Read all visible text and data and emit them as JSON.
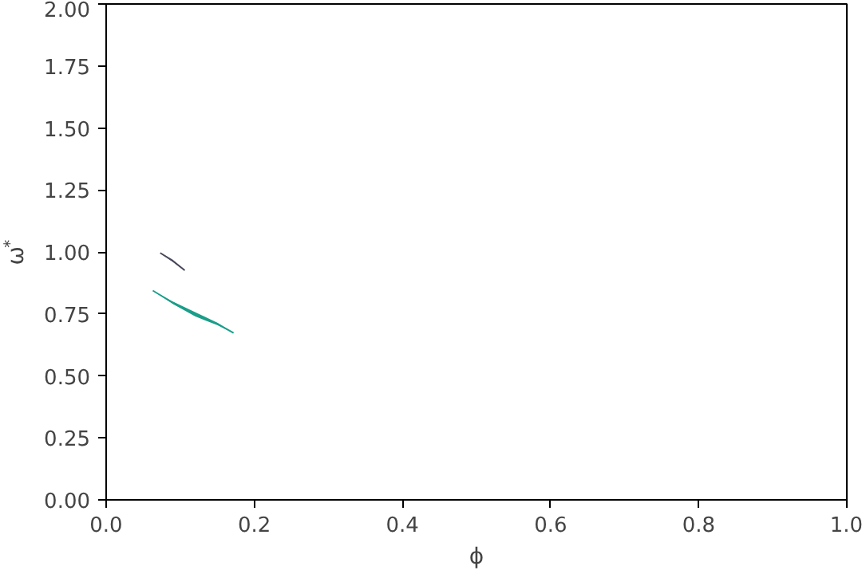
{
  "chart_data": {
    "type": "line",
    "xlabel": "ϕ",
    "ylabel": "ω$^{*}$",
    "xlim": [
      0,
      1
    ],
    "ylim": [
      0,
      2
    ],
    "xticks": [
      {
        "value": 0,
        "label": "0.0"
      },
      {
        "value": 0.2,
        "label": "0.2"
      },
      {
        "value": 0.4,
        "label": "0.4"
      },
      {
        "value": 0.6,
        "label": "0.6"
      },
      {
        "value": 0.8,
        "label": "0.8"
      },
      {
        "value": 1,
        "label": "1.0"
      }
    ],
    "yticks": [
      {
        "value": 0,
        "label": "0.00"
      },
      {
        "value": 0.25,
        "label": "0.25"
      },
      {
        "value": 0.5,
        "label": "0.50"
      },
      {
        "value": 0.75,
        "label": "0.75"
      },
      {
        "value": 1,
        "label": "1.00"
      },
      {
        "value": 1.25,
        "label": "1.25"
      },
      {
        "value": 1.5,
        "label": "1.50"
      },
      {
        "value": 1.75,
        "label": "1.75"
      },
      {
        "value": 2,
        "label": "2.00"
      }
    ],
    "series": [
      {
        "color": "#4a4a5c",
        "x": [
          0.073,
          0.09,
          0.106
        ],
        "values": [
          0.996,
          0.964,
          0.926
        ],
        "lower": [
          0.995,
          0.96,
          0.924
        ],
        "upper": [
          0.997,
          0.968,
          0.928
        ]
      },
      {
        "color": "#1a9e8a",
        "x": [
          0.063,
          0.09,
          0.12,
          0.15,
          0.172
        ],
        "values": [
          0.844,
          0.795,
          0.748,
          0.71,
          0.673
        ],
        "lower": [
          0.844,
          0.79,
          0.74,
          0.705,
          0.673
        ],
        "upper": [
          0.844,
          0.8,
          0.757,
          0.715,
          0.673
        ]
      }
    ]
  }
}
